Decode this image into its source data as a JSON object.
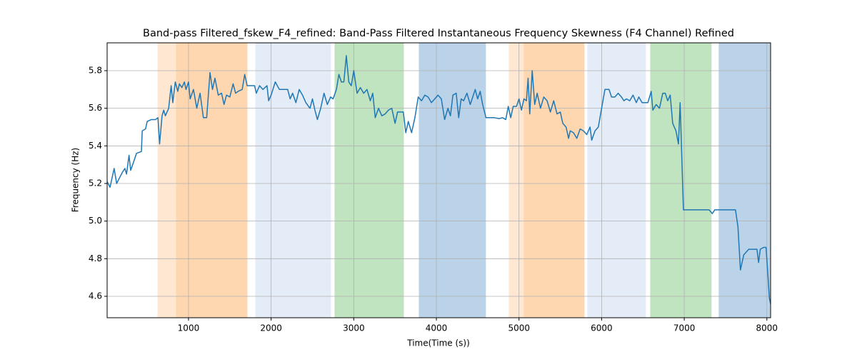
{
  "chart_data": {
    "type": "line",
    "title": "Band-pass Filtered_fskew_F4_refined: Band-Pass Filtered Instantaneous Frequency Skewness (F4 Channel) Refined",
    "xlabel": "Time(Time (s))",
    "ylabel": "Frequency (Hz)",
    "xlim": [
      15,
      8045
    ],
    "ylim": [
      4.486,
      5.948
    ],
    "xticks": [
      1000,
      2000,
      3000,
      4000,
      5000,
      6000,
      7000,
      8000
    ],
    "yticks": [
      4.6,
      4.8,
      {
        "value": 5,
        "label": "5.0"
      },
      5.2,
      5.4,
      5.6,
      5.8
    ],
    "grid": true,
    "spans": [
      {
        "start": 629,
        "end": 853,
        "color": "#ffe7d2"
      },
      {
        "start": 853,
        "end": 1709,
        "color": "#fed7b1"
      },
      {
        "start": 1813,
        "end": 2720,
        "color": "#e4ecf7"
      },
      {
        "start": 2772,
        "end": 3602,
        "color": "#c0e3c0"
      },
      {
        "start": 3792,
        "end": 4595,
        "color": "#bad3e8"
      },
      {
        "start": 4881,
        "end": 5062,
        "color": "#ffe7d2"
      },
      {
        "start": 5062,
        "end": 5788,
        "color": "#fed7b1"
      },
      {
        "start": 5831,
        "end": 6531,
        "color": "#e4ecf7"
      },
      {
        "start": 6592,
        "end": 7326,
        "color": "#c0e3c0"
      },
      {
        "start": 7421,
        "end": 8035,
        "color": "#bad3e8"
      }
    ],
    "x": [
      15,
      50,
      100,
      130,
      200,
      230,
      250,
      280,
      300,
      340,
      370,
      430,
      440,
      480,
      500,
      550,
      600,
      630,
      650,
      680,
      700,
      720,
      760,
      790,
      810,
      840,
      870,
      890,
      920,
      950,
      970,
      1000,
      1020,
      1060,
      1100,
      1140,
      1180,
      1220,
      1260,
      1290,
      1320,
      1360,
      1400,
      1430,
      1460,
      1500,
      1540,
      1570,
      1600,
      1650,
      1680,
      1710,
      1800,
      1820,
      1860,
      1900,
      1950,
      1970,
      2000,
      2050,
      2100,
      2150,
      2200,
      2230,
      2260,
      2300,
      2340,
      2380,
      2420,
      2470,
      2500,
      2530,
      2560,
      2600,
      2640,
      2680,
      2720,
      2750,
      2790,
      2820,
      2850,
      2880,
      2910,
      2940,
      2970,
      3000,
      3040,
      3080,
      3120,
      3160,
      3200,
      3230,
      3260,
      3300,
      3340,
      3380,
      3420,
      3460,
      3500,
      3530,
      3600,
      3630,
      3660,
      3700,
      3740,
      3780,
      3820,
      3860,
      3900,
      3940,
      3980,
      4020,
      4060,
      4100,
      4140,
      4170,
      4200,
      4240,
      4270,
      4300,
      4330,
      4370,
      4410,
      4440,
      4470,
      4500,
      4530,
      4560,
      4600,
      4650,
      4700,
      4760,
      4800,
      4840,
      4870,
      4900,
      4930,
      4970,
      5000,
      5030,
      5060,
      5090,
      5110,
      5130,
      5160,
      5190,
      5220,
      5260,
      5300,
      5340,
      5380,
      5420,
      5460,
      5500,
      5530,
      5570,
      5600,
      5620,
      5660,
      5700,
      5740,
      5780,
      5820,
      5860,
      5880,
      5920,
      5960,
      6000,
      6040,
      6090,
      6120,
      6160,
      6200,
      6240,
      6270,
      6300,
      6340,
      6380,
      6420,
      6450,
      6490,
      6560,
      6600,
      6620,
      6660,
      6700,
      6740,
      6770,
      6800,
      6830,
      6860,
      6900,
      6930,
      6950,
      6990,
      7100,
      7300,
      7340,
      7370,
      7620,
      7650,
      7680,
      7720,
      7760,
      7780,
      7880,
      7900,
      7920,
      7960,
      7990,
      8010,
      8030,
      8045
    ],
    "series": [
      {
        "name": "fskew_F4",
        "color": "#1f77b4",
        "values": [
          5.21,
          5.18,
          5.28,
          5.2,
          5.26,
          5.28,
          5.25,
          5.35,
          5.27,
          5.32,
          5.36,
          5.37,
          5.48,
          5.49,
          5.53,
          5.54,
          5.54,
          5.55,
          5.41,
          5.56,
          5.59,
          5.56,
          5.6,
          5.72,
          5.63,
          5.74,
          5.69,
          5.73,
          5.71,
          5.74,
          5.7,
          5.74,
          5.65,
          5.7,
          5.6,
          5.68,
          5.55,
          5.55,
          5.79,
          5.7,
          5.76,
          5.67,
          5.68,
          5.62,
          5.67,
          5.66,
          5.73,
          5.68,
          5.69,
          5.7,
          5.78,
          5.72,
          5.72,
          5.68,
          5.72,
          5.7,
          5.72,
          5.64,
          5.67,
          5.74,
          5.7,
          5.7,
          5.7,
          5.65,
          5.68,
          5.63,
          5.7,
          5.67,
          5.63,
          5.6,
          5.65,
          5.59,
          5.54,
          5.6,
          5.68,
          5.62,
          5.66,
          5.65,
          5.7,
          5.78,
          5.74,
          5.74,
          5.88,
          5.74,
          5.72,
          5.8,
          5.68,
          5.71,
          5.68,
          5.7,
          5.64,
          5.68,
          5.55,
          5.6,
          5.56,
          5.57,
          5.59,
          5.6,
          5.52,
          5.58,
          5.58,
          5.47,
          5.53,
          5.47,
          5.55,
          5.66,
          5.64,
          5.67,
          5.66,
          5.63,
          5.65,
          5.67,
          5.65,
          5.54,
          5.6,
          5.56,
          5.67,
          5.68,
          5.55,
          5.65,
          5.64,
          5.68,
          5.62,
          5.66,
          5.7,
          5.65,
          5.69,
          5.62,
          5.55,
          5.55,
          5.55,
          5.545,
          5.55,
          5.54,
          5.61,
          5.55,
          5.61,
          5.61,
          5.65,
          5.59,
          5.65,
          5.64,
          5.76,
          5.57,
          5.8,
          5.62,
          5.68,
          5.6,
          5.66,
          5.64,
          5.58,
          5.64,
          5.57,
          5.58,
          5.52,
          5.5,
          5.44,
          5.48,
          5.47,
          5.44,
          5.49,
          5.48,
          5.46,
          5.5,
          5.43,
          5.48,
          5.5,
          5.6,
          5.7,
          5.7,
          5.66,
          5.66,
          5.68,
          5.66,
          5.64,
          5.65,
          5.64,
          5.67,
          5.63,
          5.66,
          5.63,
          5.63,
          5.69,
          5.59,
          5.62,
          5.6,
          5.68,
          5.68,
          5.64,
          5.67,
          5.52,
          5.48,
          5.41,
          5.63,
          5.06,
          5.06,
          5.06,
          5.04,
          5.06,
          5.06,
          4.97,
          4.74,
          4.82,
          4.84,
          4.85,
          4.85,
          4.78,
          4.85,
          4.86,
          4.86,
          4.73,
          4.59,
          4.56
        ]
      }
    ]
  }
}
